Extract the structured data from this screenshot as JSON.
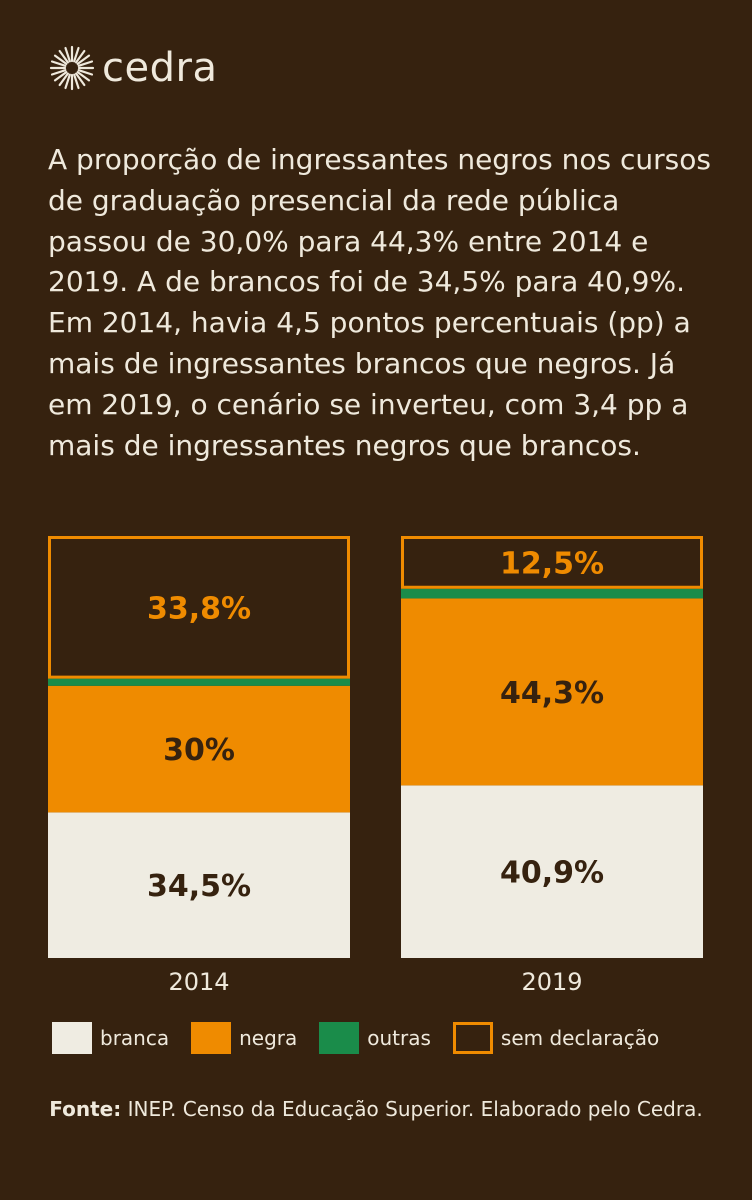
{
  "brand": {
    "name": "cedra",
    "logo_icon": "sun-burst-icon"
  },
  "intro": "A proporção de ingressantes negros nos cursos de graduação presencial da rede pública passou de 30,0% para 44,3% entre 2014 e 2019. A de brancos foi de 34,5% para 40,9%. Em 2014, havia 4,5 pontos percentuais (pp) a mais de ingressantes brancos que negros. Já em 2019, o cenário se inverteu, com 3,4 pp a mais de ingressantes negros que brancos.",
  "colors": {
    "background": "#36220f",
    "branca": "#efece2",
    "negra": "#ef8b00",
    "outras": "#1a8c4a",
    "sem_declaracao_border": "#ef8b00",
    "dark_text": "#36220f"
  },
  "chart_data": {
    "type": "bar",
    "stacked": true,
    "categories": [
      "2014",
      "2019"
    ],
    "series": [
      {
        "name": "branca",
        "values": [
          34.5,
          40.9
        ],
        "labels": [
          "34,5%",
          "40,9%"
        ]
      },
      {
        "name": "negra",
        "values": [
          30.0,
          44.3
        ],
        "labels": [
          "30%",
          "44,3%"
        ]
      },
      {
        "name": "outras",
        "values": [
          1.7,
          2.3
        ],
        "labels": [
          "",
          ""
        ]
      },
      {
        "name": "sem declaração",
        "values": [
          33.8,
          12.5
        ],
        "labels": [
          "33,8%",
          "12,5%"
        ]
      }
    ],
    "ylim": [
      0,
      100
    ],
    "legend_position": "bottom"
  },
  "legend": [
    {
      "label": "branca",
      "key": "branca"
    },
    {
      "label": "negra",
      "key": "negra"
    },
    {
      "label": "outras",
      "key": "outras"
    },
    {
      "label": "sem declaração",
      "key": "sem_declaracao"
    }
  ],
  "source": {
    "label": "Fonte:",
    "text": " INEP. Censo da Educação Superior. Elaborado pelo Cedra."
  }
}
